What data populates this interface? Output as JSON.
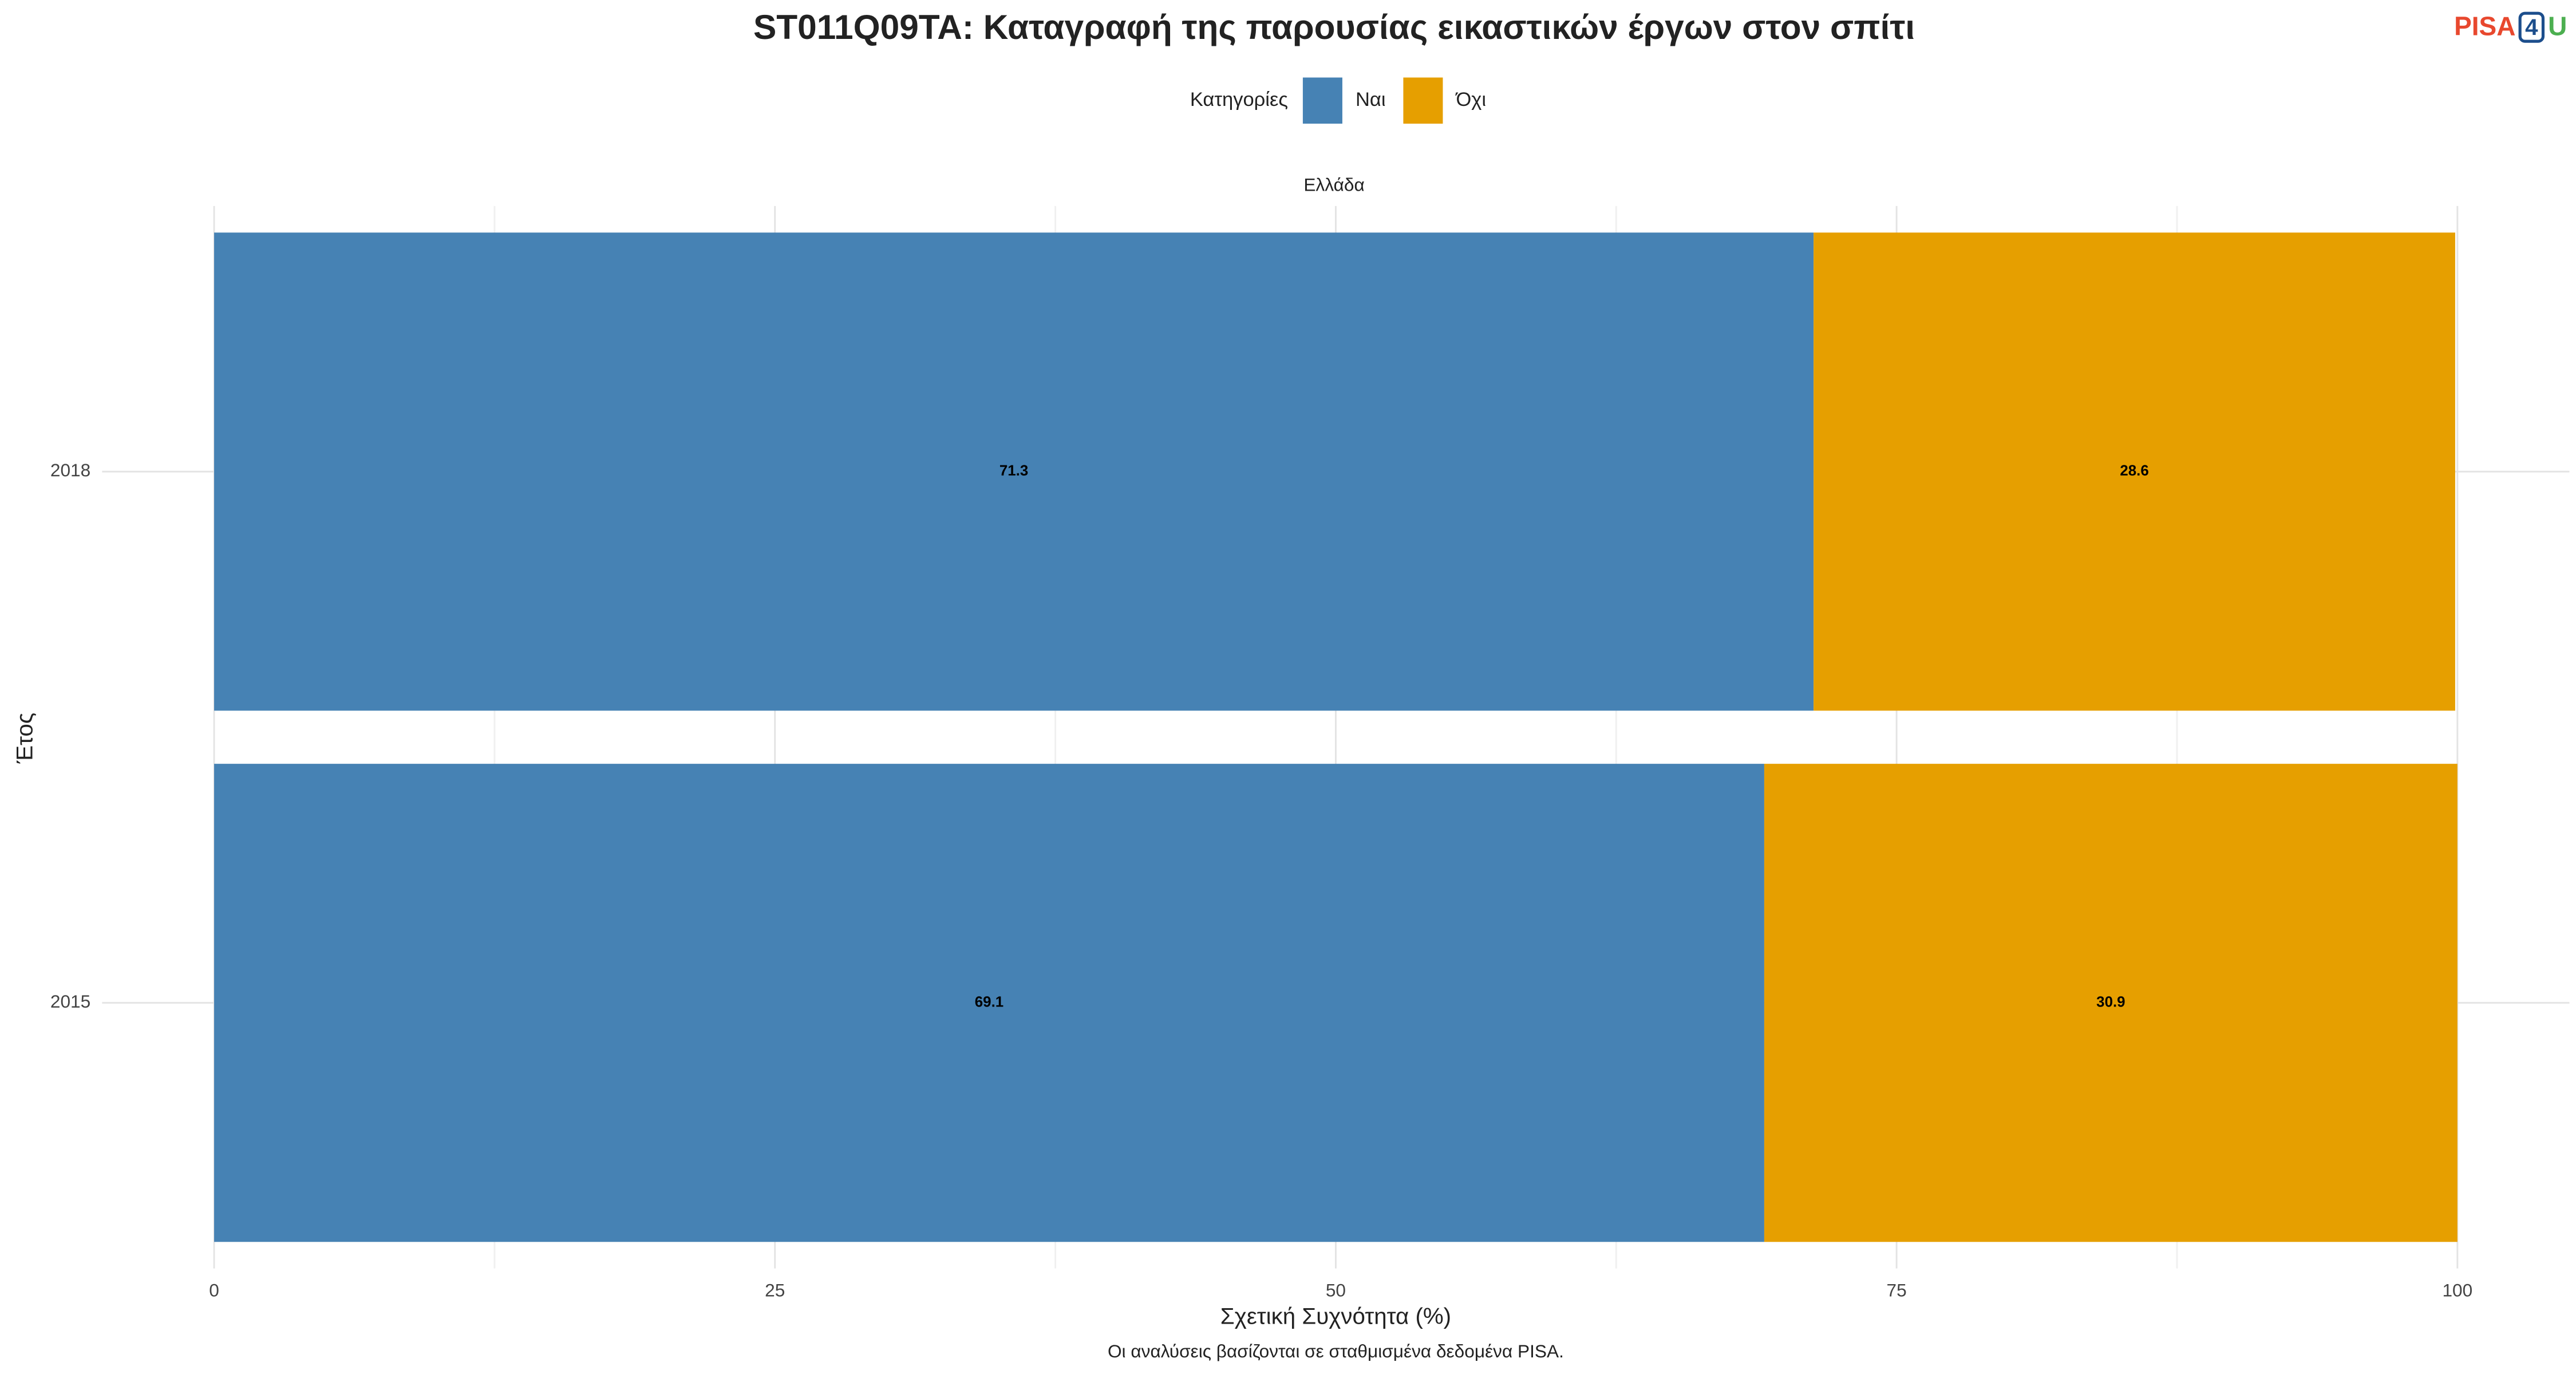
{
  "chart_data": {
    "type": "stacked-bar-horizontal",
    "title": "ST011Q09TA: Καταγραφή της παρουσίας εικαστικών έργων στον σπίτι",
    "logo": [
      "PISA",
      "4",
      "U"
    ],
    "legend_title": "Κατηγορίες",
    "facet_label": "Ελλάδα",
    "x_label": "Σχετική Συχνότητα (%)",
    "y_label": "Έτος",
    "caption": "Οι αναλύσεις βασίζονται σε σταθμισμένα δεδομένα PISA.",
    "categories": [
      "2018",
      "2015"
    ],
    "series": [
      {
        "name": "Ναι",
        "color": "#4682b4",
        "values": [
          71.3,
          69.1
        ]
      },
      {
        "name": "Όχι",
        "color": "#e69f00",
        "values": [
          28.6,
          30.9
        ]
      }
    ],
    "xlim": [
      0,
      100
    ],
    "xticks": [
      0,
      25,
      50,
      75,
      100
    ],
    "grid": true,
    "legend": "top"
  }
}
